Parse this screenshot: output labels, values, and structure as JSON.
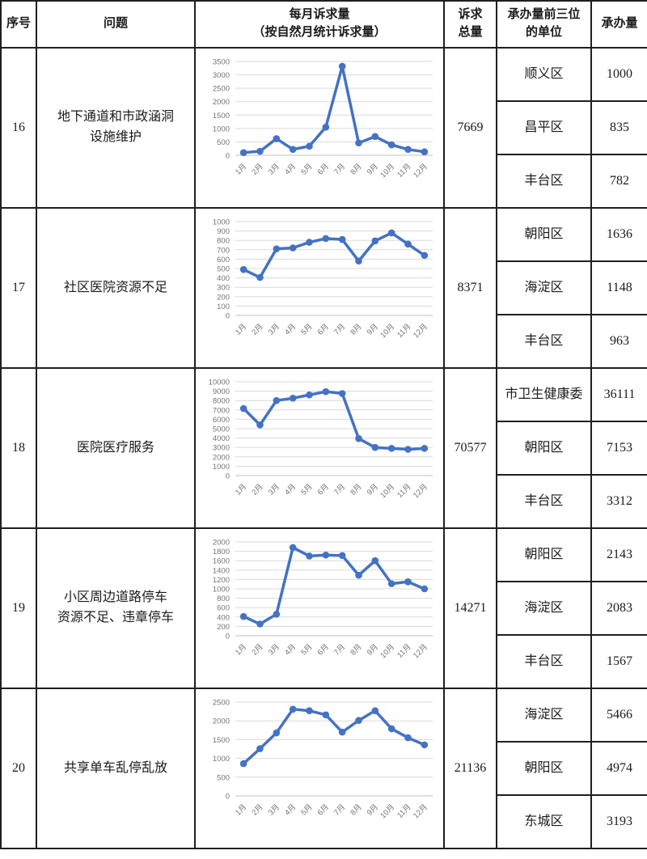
{
  "table": {
    "headers": {
      "no": "序号",
      "problem": "问题",
      "chart": "每月诉求量\n（按自然月统计诉求量）",
      "total": "诉求\n总量",
      "units": "承办量前三位\n的单位",
      "volume": "承办量"
    },
    "rows": [
      {
        "no": "16",
        "problem": "地下通道和市政涵洞\n设施维护",
        "total": "7669",
        "units": [
          {
            "name": "顺义区",
            "value": "1000"
          },
          {
            "name": "昌平区",
            "value": "835"
          },
          {
            "name": "丰台区",
            "value": "782"
          }
        ]
      },
      {
        "no": "17",
        "problem": "社区医院资源不足",
        "total": "8371",
        "units": [
          {
            "name": "朝阳区",
            "value": "1636"
          },
          {
            "name": "海淀区",
            "value": "1148"
          },
          {
            "name": "丰台区",
            "value": "963"
          }
        ]
      },
      {
        "no": "18",
        "problem": "医院医疗服务",
        "total": "70577",
        "units": [
          {
            "name": "市卫生健康委",
            "value": "36111"
          },
          {
            "name": "朝阳区",
            "value": "7153"
          },
          {
            "name": "丰台区",
            "value": "3312"
          }
        ]
      },
      {
        "no": "19",
        "problem": "小区周边道路停车\n资源不足、违章停车",
        "total": "14271",
        "units": [
          {
            "name": "朝阳区",
            "value": "2143"
          },
          {
            "name": "海淀区",
            "value": "2083"
          },
          {
            "name": "丰台区",
            "value": "1567"
          }
        ]
      },
      {
        "no": "20",
        "problem": "共享单车乱停乱放",
        "total": "21136",
        "units": [
          {
            "name": "海淀区",
            "value": "5466"
          },
          {
            "name": "朝阳区",
            "value": "4974"
          },
          {
            "name": "东城区",
            "value": "3193"
          }
        ]
      }
    ]
  },
  "colors": {
    "line": "#4472C4",
    "marker": "#4472C4",
    "grid": "#DADADA",
    "zero_line": "#C0C0C0",
    "axis_text": "#757575",
    "border": "#1F1F1F"
  },
  "chart_data": [
    {
      "type": "line",
      "row_no": "16",
      "title": "每月诉求量（按自然月统计诉求量）",
      "xlabel": "",
      "ylabel": "",
      "categories": [
        "1月",
        "2月",
        "3月",
        "4月",
        "5月",
        "6月",
        "7月",
        "8月",
        "9月",
        "10月",
        "11月",
        "12月"
      ],
      "values": [
        100,
        150,
        620,
        220,
        340,
        1050,
        3320,
        460,
        700,
        390,
        220,
        130
      ],
      "ylim": [
        0,
        3500
      ],
      "ystep": 500,
      "grid": true,
      "legend": "none"
    },
    {
      "type": "line",
      "row_no": "17",
      "title": "每月诉求量（按自然月统计诉求量）",
      "xlabel": "",
      "ylabel": "",
      "categories": [
        "1月",
        "2月",
        "3月",
        "4月",
        "5月",
        "6月",
        "7月",
        "8月",
        "9月",
        "10月",
        "11月",
        "12月"
      ],
      "values": [
        490,
        405,
        710,
        720,
        780,
        820,
        810,
        580,
        795,
        880,
        760,
        640
      ],
      "ylim": [
        0,
        1000
      ],
      "ystep": 100,
      "grid": true,
      "legend": "none"
    },
    {
      "type": "line",
      "row_no": "18",
      "title": "每月诉求量（按自然月统计诉求量）",
      "xlabel": "",
      "ylabel": "",
      "categories": [
        "1月",
        "2月",
        "3月",
        "4月",
        "5月",
        "6月",
        "7月",
        "8月",
        "9月",
        "10月",
        "11月",
        "12月"
      ],
      "values": [
        7150,
        5400,
        8000,
        8250,
        8600,
        8950,
        8750,
        3950,
        3000,
        2900,
        2800,
        2900
      ],
      "ylim": [
        0,
        10000
      ],
      "ystep": 1000,
      "grid": true,
      "legend": "none"
    },
    {
      "type": "line",
      "row_no": "19",
      "title": "每月诉求量（按自然月统计诉求量）",
      "xlabel": "",
      "ylabel": "",
      "categories": [
        "1月",
        "2月",
        "3月",
        "4月",
        "5月",
        "6月",
        "7月",
        "8月",
        "9月",
        "10月",
        "11月",
        "12月"
      ],
      "values": [
        410,
        250,
        460,
        1880,
        1700,
        1720,
        1710,
        1290,
        1600,
        1110,
        1150,
        1000
      ],
      "ylim": [
        0,
        2000
      ],
      "ystep": 200,
      "grid": true,
      "legend": "none"
    },
    {
      "type": "line",
      "row_no": "20",
      "title": "每月诉求量（按自然月统计诉求量）",
      "xlabel": "",
      "ylabel": "",
      "categories": [
        "1月",
        "2月",
        "3月",
        "4月",
        "5月",
        "6月",
        "7月",
        "8月",
        "9月",
        "10月",
        "11月",
        "12月"
      ],
      "values": [
        860,
        1260,
        1680,
        2310,
        2270,
        2160,
        1700,
        2010,
        2270,
        1790,
        1550,
        1360
      ],
      "ylim": [
        0,
        2500
      ],
      "ystep": 500,
      "grid": true,
      "legend": "none"
    }
  ]
}
